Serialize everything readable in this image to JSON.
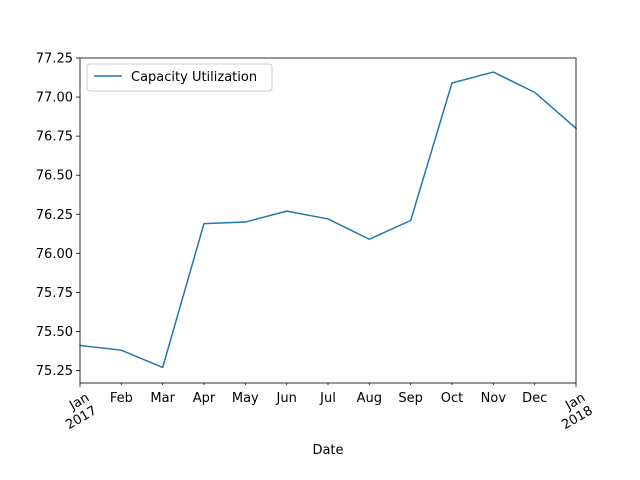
{
  "chart_data": {
    "type": "line",
    "xlabel": "Date",
    "ylabel": "",
    "title": "",
    "x": [
      "2017-01",
      "2017-02",
      "2017-03",
      "2017-04",
      "2017-05",
      "2017-06",
      "2017-07",
      "2017-08",
      "2017-09",
      "2017-10",
      "2017-11",
      "2017-12",
      "2018-01"
    ],
    "x_tick_labels": [
      {
        "month": "Jan",
        "year": "2017"
      },
      {
        "month": "Feb",
        "year": ""
      },
      {
        "month": "Mar",
        "year": ""
      },
      {
        "month": "Apr",
        "year": ""
      },
      {
        "month": "May",
        "year": ""
      },
      {
        "month": "Jun",
        "year": ""
      },
      {
        "month": "Jul",
        "year": ""
      },
      {
        "month": "Aug",
        "year": ""
      },
      {
        "month": "Sep",
        "year": ""
      },
      {
        "month": "Oct",
        "year": ""
      },
      {
        "month": "Nov",
        "year": ""
      },
      {
        "month": "Dec",
        "year": ""
      },
      {
        "month": "Jan",
        "year": "2018"
      }
    ],
    "ylim": [
      75.17,
      77.25
    ],
    "y_ticks": [
      "75.25",
      "75.50",
      "75.75",
      "76.00",
      "76.25",
      "76.50",
      "76.75",
      "77.00",
      "77.25"
    ],
    "series": [
      {
        "name": "Capacity Utilization",
        "color": "#1f77b4",
        "values": [
          75.41,
          75.38,
          75.27,
          76.19,
          76.2,
          76.27,
          76.22,
          76.09,
          76.21,
          77.09,
          77.16,
          77.03,
          76.8
        ]
      }
    ],
    "legend_position": "top-left",
    "grid": false
  }
}
